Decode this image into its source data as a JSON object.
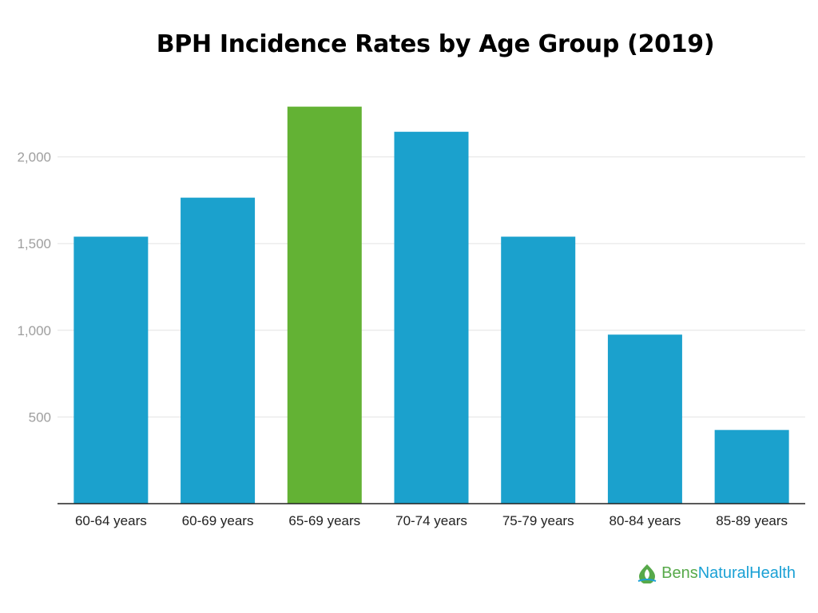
{
  "chart_data": {
    "type": "bar",
    "title": "BPH Incidence Rates by Age Group (2019)",
    "xlabel": "",
    "ylabel": "",
    "categories": [
      "60-64 years",
      "60-69 years",
      "65-69 years",
      "70-74 years",
      "75-79 years",
      "80-84 years",
      "85-89 years"
    ],
    "values": [
      1540,
      1765,
      2290,
      2145,
      1540,
      975,
      425
    ],
    "highlight_index": 2,
    "colors": {
      "bar": "#1ba1cd",
      "highlight": "#63b234",
      "grid": "#e3e3e3",
      "axis": "#222222"
    },
    "ylim": [
      0,
      2400
    ],
    "yticks": [
      500,
      1000,
      1500,
      2000
    ],
    "ytick_labels": [
      "500",
      "1,000",
      "1,500",
      "2,000"
    ],
    "grid": true,
    "legend": "none"
  },
  "brand": {
    "part1": "Bens",
    "part2": "NaturalHealth",
    "icon": "leaf-drop-icon"
  }
}
